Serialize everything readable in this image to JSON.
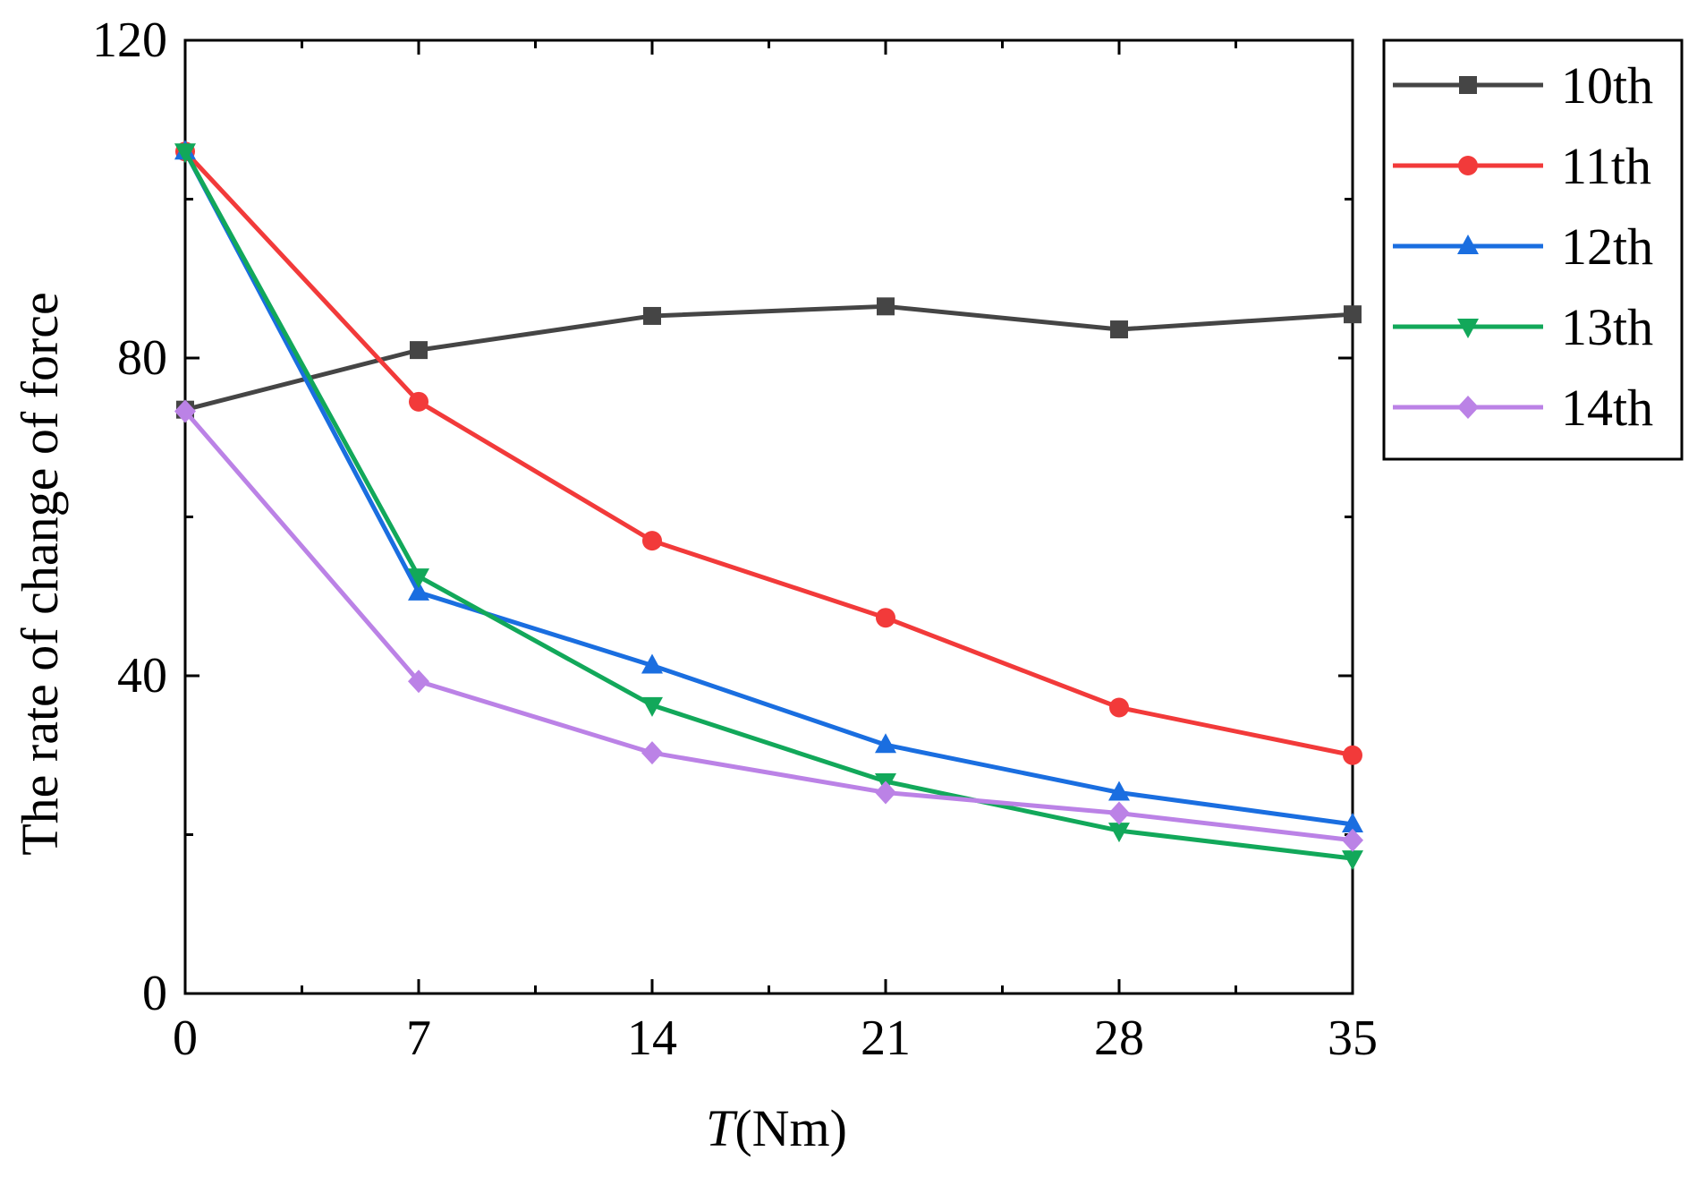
{
  "chart_data": {
    "type": "line",
    "x": [
      0,
      7,
      14,
      21,
      28,
      35
    ],
    "x_ticks": [
      "0",
      "7",
      "14",
      "21",
      "28",
      "35"
    ],
    "y_ticks": [
      "0",
      "40",
      "80",
      "120"
    ],
    "xlim": [
      0,
      35
    ],
    "ylim": [
      0,
      120
    ],
    "xlabel_italic": "T",
    "xlabel_rest": "(Nm)",
    "ylabel": "The rate of change of force",
    "grid": false,
    "legend_position": "right",
    "series": [
      {
        "name": "10th",
        "color": "#454545",
        "marker": "square",
        "values": [
          73.5,
          81.0,
          85.3,
          86.5,
          83.6,
          85.5
        ]
      },
      {
        "name": "11th",
        "color": "#f23a3a",
        "marker": "circle",
        "values": [
          106.0,
          74.5,
          57.0,
          47.3,
          36.0,
          30.0
        ]
      },
      {
        "name": "12th",
        "color": "#1a6ee0",
        "marker": "triangle-up",
        "values": [
          106.0,
          50.5,
          41.3,
          31.3,
          25.3,
          21.3
        ]
      },
      {
        "name": "13th",
        "color": "#12a85a",
        "marker": "triangle-down",
        "values": [
          106.0,
          52.5,
          36.3,
          26.7,
          20.5,
          17.0
        ]
      },
      {
        "name": "14th",
        "color": "#bb82e6",
        "marker": "diamond",
        "values": [
          73.3,
          39.3,
          30.3,
          25.3,
          22.7,
          19.3
        ]
      }
    ]
  }
}
